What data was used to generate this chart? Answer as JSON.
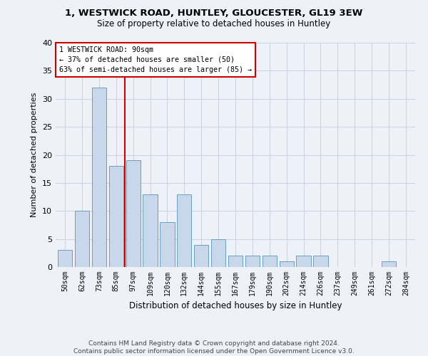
{
  "title_line1": "1, WESTWICK ROAD, HUNTLEY, GLOUCESTER, GL19 3EW",
  "title_line2": "Size of property relative to detached houses in Huntley",
  "xlabel": "Distribution of detached houses by size in Huntley",
  "ylabel": "Number of detached properties",
  "categories": [
    "50sqm",
    "62sqm",
    "73sqm",
    "85sqm",
    "97sqm",
    "109sqm",
    "120sqm",
    "132sqm",
    "144sqm",
    "155sqm",
    "167sqm",
    "179sqm",
    "190sqm",
    "202sqm",
    "214sqm",
    "226sqm",
    "237sqm",
    "249sqm",
    "261sqm",
    "272sqm",
    "284sqm"
  ],
  "values": [
    3,
    10,
    32,
    18,
    19,
    13,
    8,
    13,
    4,
    5,
    2,
    2,
    2,
    1,
    2,
    2,
    0,
    0,
    0,
    1,
    0
  ],
  "bar_color": "#c8d8ea",
  "bar_edge_color": "#6a9fc0",
  "annotation_text": "1 WESTWICK ROAD: 90sqm\n← 37% of detached houses are smaller (50)\n63% of semi-detached houses are larger (85) →",
  "vline_color": "#cc0000",
  "annotation_box_bg": "#ffffff",
  "annotation_box_edge": "#cc0000",
  "grid_color": "#c8d4e0",
  "bg_color": "#eef2f8",
  "ylim": [
    0,
    40
  ],
  "yticks": [
    0,
    5,
    10,
    15,
    20,
    25,
    30,
    35,
    40
  ],
  "footnote_line1": "Contains HM Land Registry data © Crown copyright and database right 2024.",
  "footnote_line2": "Contains public sector information licensed under the Open Government Licence v3.0."
}
